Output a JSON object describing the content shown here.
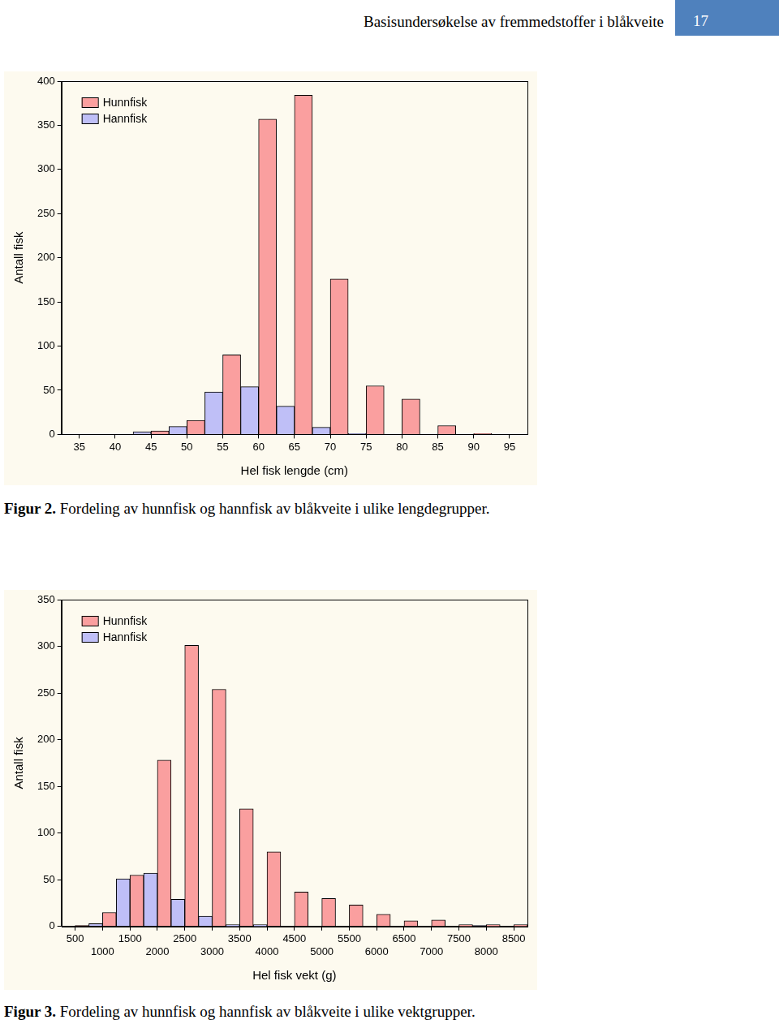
{
  "header": {
    "title": "Basisundersøkelse av fremmedstoffer i blåkveite",
    "page_number": 17
  },
  "chart_data": [
    {
      "type": "bar",
      "caption": {
        "label": "Figur 2.",
        "text": "Fordeling av hunnfisk og hannfisk av blåkveite i ulike lengdegrupper."
      },
      "x_label": "Hel fisk lengde (cm)",
      "y_label": "Antall fisk",
      "categories": [
        35,
        40,
        45,
        50,
        55,
        60,
        65,
        70,
        75,
        80,
        85,
        90,
        95
      ],
      "series": [
        {
          "name": "Hunnfisk",
          "color": "#fa9f9f",
          "values": [
            0,
            0,
            4,
            16,
            90,
            357,
            384,
            176,
            55,
            40,
            10,
            1,
            0
          ]
        },
        {
          "name": "Hannfisk",
          "color": "#bfbff7",
          "values": [
            0,
            0,
            3,
            9,
            48,
            54,
            32,
            8,
            1,
            0,
            0,
            0,
            0
          ]
        }
      ],
      "ylim": [
        0,
        400
      ],
      "yticks": [
        0,
        50,
        100,
        150,
        200,
        250,
        300,
        350,
        400
      ],
      "grid": false,
      "legend": "upper left"
    },
    {
      "type": "bar",
      "caption": {
        "label": "Figur 3.",
        "text": "Fordeling av hunnfisk og hannfisk av blåkveite i ulike vektgrupper."
      },
      "x_label": "Hel fisk vekt (g)",
      "y_label": "Antall fisk",
      "categories": [
        500,
        1000,
        1500,
        2000,
        2500,
        3000,
        3500,
        4000,
        4500,
        5000,
        5500,
        6000,
        6500,
        7000,
        7500,
        8000,
        8500
      ],
      "series": [
        {
          "name": "Hunnfisk",
          "color": "#fa9f9f",
          "values": [
            1,
            15,
            55,
            178,
            301,
            254,
            126,
            80,
            37,
            30,
            23,
            13,
            6,
            7,
            2,
            2,
            2
          ]
        },
        {
          "name": "Hannfisk",
          "color": "#bfbff7",
          "values": [
            0,
            3,
            51,
            57,
            29,
            11,
            2,
            2,
            0,
            0,
            0,
            0,
            0,
            0,
            0,
            1,
            0
          ]
        }
      ],
      "ylim": [
        0,
        350
      ],
      "yticks": [
        0,
        50,
        100,
        150,
        200,
        250,
        300,
        350
      ],
      "grid": false,
      "legend": "upper left"
    }
  ]
}
